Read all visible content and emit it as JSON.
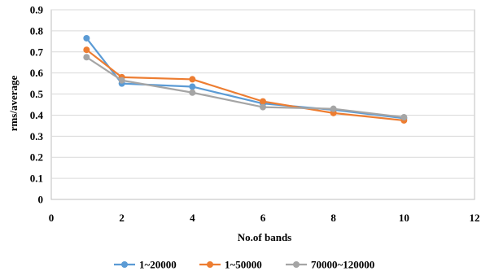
{
  "chart_data": {
    "type": "line",
    "title": "",
    "xlabel": "No.of bands",
    "ylabel": "rms/average",
    "xlim": [
      0,
      12
    ],
    "ylim": [
      0,
      0.9
    ],
    "xticks": [
      0,
      2,
      4,
      6,
      8,
      10,
      12
    ],
    "yticks": [
      0,
      0.1,
      0.2,
      0.3,
      0.4,
      0.5,
      0.6,
      0.7,
      0.8,
      0.9
    ],
    "grid": "horizontal",
    "legend_position": "bottom",
    "series": [
      {
        "name": "1~20000",
        "color": "#5B9BD5",
        "x": [
          1,
          2,
          4,
          6,
          8,
          10
        ],
        "y": [
          0.765,
          0.55,
          0.535,
          0.455,
          0.425,
          0.385
        ]
      },
      {
        "name": "1~50000",
        "color": "#ED7D31",
        "x": [
          1,
          2,
          4,
          6,
          8,
          10
        ],
        "y": [
          0.71,
          0.58,
          0.57,
          0.465,
          0.41,
          0.375
        ]
      },
      {
        "name": "70000~120000",
        "color": "#A5A5A5",
        "x": [
          1,
          2,
          4,
          6,
          8,
          10
        ],
        "y": [
          0.675,
          0.565,
          0.507,
          0.438,
          0.43,
          0.39
        ]
      }
    ]
  }
}
